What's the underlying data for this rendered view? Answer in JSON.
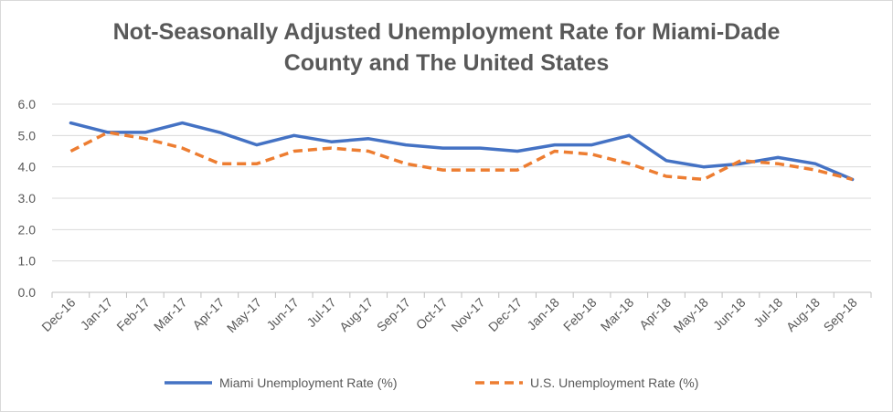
{
  "chart_data": {
    "type": "line",
    "title_line1": "Not-Seasonally Adjusted Unemployment Rate for Miami-Dade",
    "title_line2": "County and The United States",
    "xlabel": "",
    "ylabel": "",
    "ylim": [
      0,
      6
    ],
    "yticks": [
      "0.0",
      "1.0",
      "2.0",
      "3.0",
      "4.0",
      "5.0",
      "6.0"
    ],
    "grid": true,
    "legend_position": "bottom",
    "categories": [
      "Dec-16",
      "Jan-17",
      "Feb-17",
      "Mar-17",
      "Apr-17",
      "May-17",
      "Jun-17",
      "Jul-17",
      "Aug-17",
      "Sep-17",
      "Oct-17",
      "Nov-17",
      "Dec-17",
      "Jan-18",
      "Feb-18",
      "Mar-18",
      "Apr-18",
      "May-18",
      "Jun-18",
      "Jul-18",
      "Aug-18",
      "Sep-18"
    ],
    "series": [
      {
        "name": "Miami Unemployment Rate (%)",
        "color": "#4472C4",
        "style": "solid",
        "values": [
          5.4,
          5.1,
          5.1,
          5.4,
          5.1,
          4.7,
          5.0,
          4.8,
          4.9,
          4.7,
          4.6,
          4.6,
          4.5,
          4.7,
          4.7,
          5.0,
          4.2,
          4.0,
          4.1,
          4.3,
          4.1,
          3.6
        ]
      },
      {
        "name": "U.S. Unemployment Rate (%)",
        "color": "#ED7D31",
        "style": "dashed",
        "values": [
          4.5,
          5.1,
          4.9,
          4.6,
          4.1,
          4.1,
          4.5,
          4.6,
          4.5,
          4.1,
          3.9,
          3.9,
          3.9,
          4.5,
          4.4,
          4.1,
          3.7,
          3.6,
          4.2,
          4.1,
          3.9,
          3.6
        ]
      }
    ]
  }
}
